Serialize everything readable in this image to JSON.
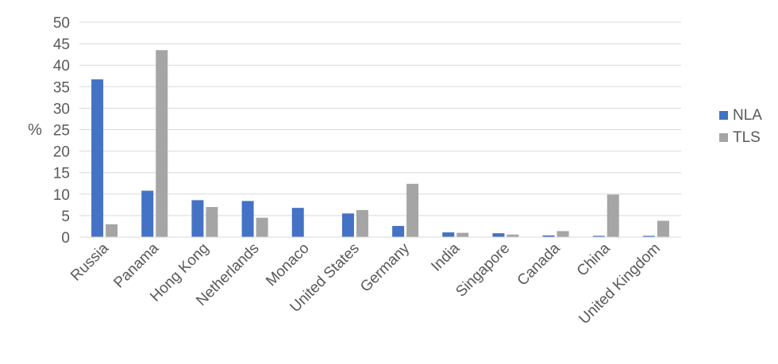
{
  "chart_data": {
    "type": "bar",
    "title": "",
    "xlabel": "",
    "ylabel": "%",
    "ylim": [
      0,
      50
    ],
    "yticks": [
      "0",
      "5",
      "10",
      "15",
      "20",
      "25",
      "30",
      "35",
      "40",
      "45",
      "50"
    ],
    "grid": true,
    "legend_position": "right",
    "categories": [
      "Russia",
      "Panama",
      "Hong Kong",
      "Netherlands",
      "Monaco",
      "United States",
      "Germany",
      "India",
      "Singapore",
      "Canada",
      "China",
      "United Kingdom"
    ],
    "series": [
      {
        "name": "NLA",
        "color": "#4472C4",
        "values": [
          36.7,
          10.8,
          8.6,
          8.4,
          6.8,
          5.5,
          2.6,
          1.1,
          0.9,
          0.4,
          0.3,
          0.3
        ]
      },
      {
        "name": "TLS",
        "color": "#A5A5A5",
        "values": [
          3.0,
          43.5,
          7.0,
          4.5,
          0.0,
          6.3,
          12.4,
          1.0,
          0.6,
          1.4,
          9.9,
          3.8
        ]
      }
    ]
  }
}
